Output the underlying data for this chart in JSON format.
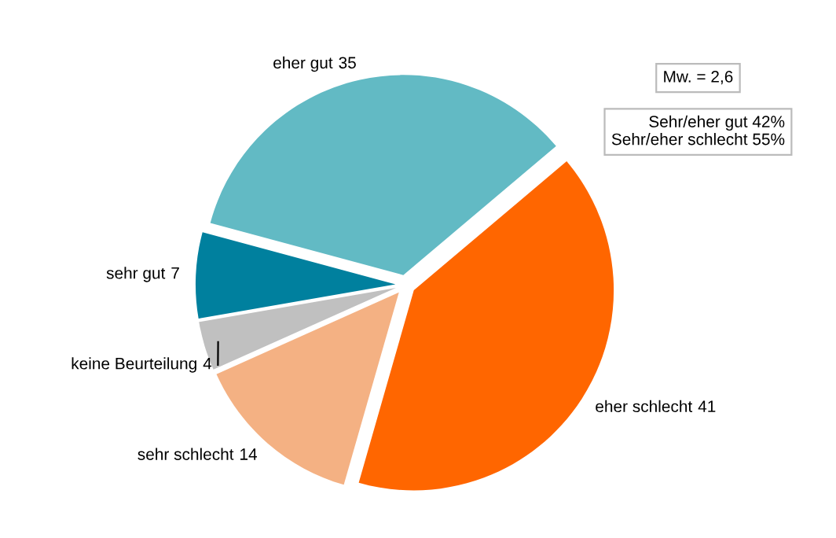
{
  "chart_data": {
    "type": "pie",
    "categories": [
      "eher schlecht",
      "eher gut",
      "sehr gut",
      "keine Beurteilung",
      "sehr schlecht"
    ],
    "values": [
      41,
      35,
      7,
      4,
      14
    ],
    "colors": [
      "#ff6600",
      "#62bac4",
      "#00809e",
      "#c0c0c0",
      "#f4b183"
    ],
    "data_labels": true,
    "annotations": [
      "Mw. = 2,6",
      "Sehr/eher gut 42%\nSehr/eher schlecht 55%"
    ]
  }
}
